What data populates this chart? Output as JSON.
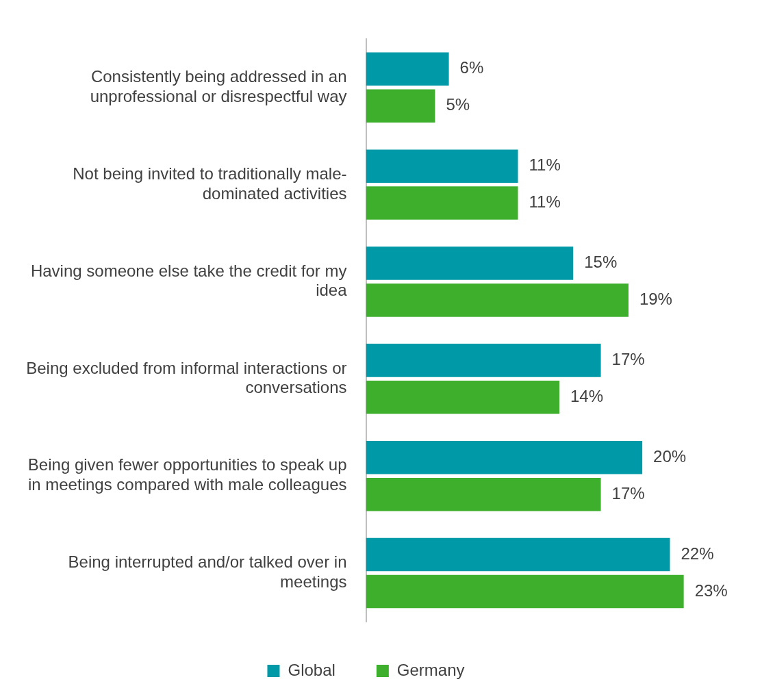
{
  "chart_data": {
    "type": "bar",
    "orientation": "horizontal",
    "categories": [
      "Consistently being addressed in an unprofessional or disrespectful way",
      "Not being invited to traditionally male-dominated activities",
      "Having someone else take the credit for my idea",
      "Being excluded from informal interactions or conversations",
      "Being given fewer opportunities to speak up in meetings compared with male colleagues",
      "Being interrupted and/or talked over in meetings"
    ],
    "series": [
      {
        "name": "Global",
        "color": "#0099a8",
        "values": [
          6,
          11,
          15,
          17,
          20,
          22
        ],
        "value_labels": [
          "6%",
          "11%",
          "15%",
          "17%",
          "20%",
          "22%"
        ]
      },
      {
        "name": "Germany",
        "color": "#3daf2c",
        "values": [
          5,
          11,
          19,
          14,
          17,
          23
        ],
        "value_labels": [
          "5%",
          "11%",
          "19%",
          "14%",
          "17%",
          "23%"
        ]
      }
    ],
    "tick_labels": "y",
    "grid": false,
    "legend": "bottom"
  }
}
